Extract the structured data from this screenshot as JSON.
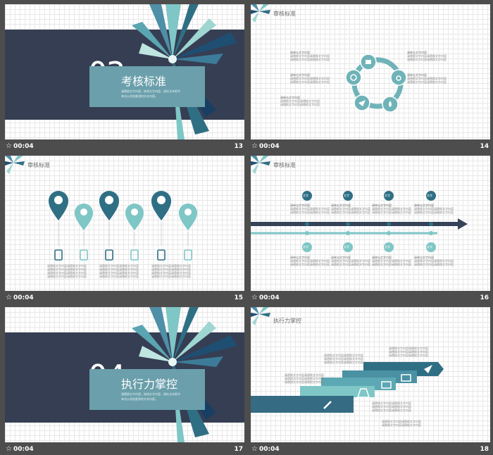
{
  "slides": [
    {
      "kind": "section",
      "section_number": "03",
      "title": "考核标准",
      "desc_lines": [
        "请替换文字内容，修改文字内容，请在文本框中",
        "单击以添加更改的文本内容。"
      ],
      "duration": "00:04",
      "number": "13"
    },
    {
      "kind": "cycle",
      "title": "审核标准",
      "label": "请单击文字内容",
      "body_line": "请替换文字内容请替换文字内容",
      "icons": [
        "thumbs-up",
        "medal",
        "water-drop",
        "paper-plane",
        "target"
      ],
      "duration": "00:04",
      "number": "14"
    },
    {
      "kind": "pins",
      "title": "审核标准",
      "body_line": "请替换文字内容请替换文字内容",
      "duration": "00:04",
      "number": "15"
    },
    {
      "kind": "timeline",
      "title": "审核标准",
      "badge": "文字",
      "label": "请单击文字内容",
      "body_line": "请替换文字内容请替换文字内容",
      "duration": "00:04",
      "number": "16"
    },
    {
      "kind": "section",
      "section_number": "04",
      "title": "执行力掌控",
      "desc_lines": [
        "请替换文字内容，修改文字内容，请在文本框中",
        "单击以添加更改的文本内容。"
      ],
      "duration": "00:04",
      "number": "17"
    },
    {
      "kind": "steps",
      "title": "执行力掌控",
      "body_line": "请替换文字内容请替换文字内容",
      "icons": [
        "pencil",
        "flask",
        "monitor",
        "card",
        "paper-plane"
      ],
      "duration": "00:04",
      "number": "18"
    }
  ],
  "colors": {
    "navy": "#363e53",
    "teal_panel": "#6a9fab",
    "teal_dark": "#2f6f84",
    "teal_light": "#7fc6c6",
    "arrow": "#354257"
  }
}
